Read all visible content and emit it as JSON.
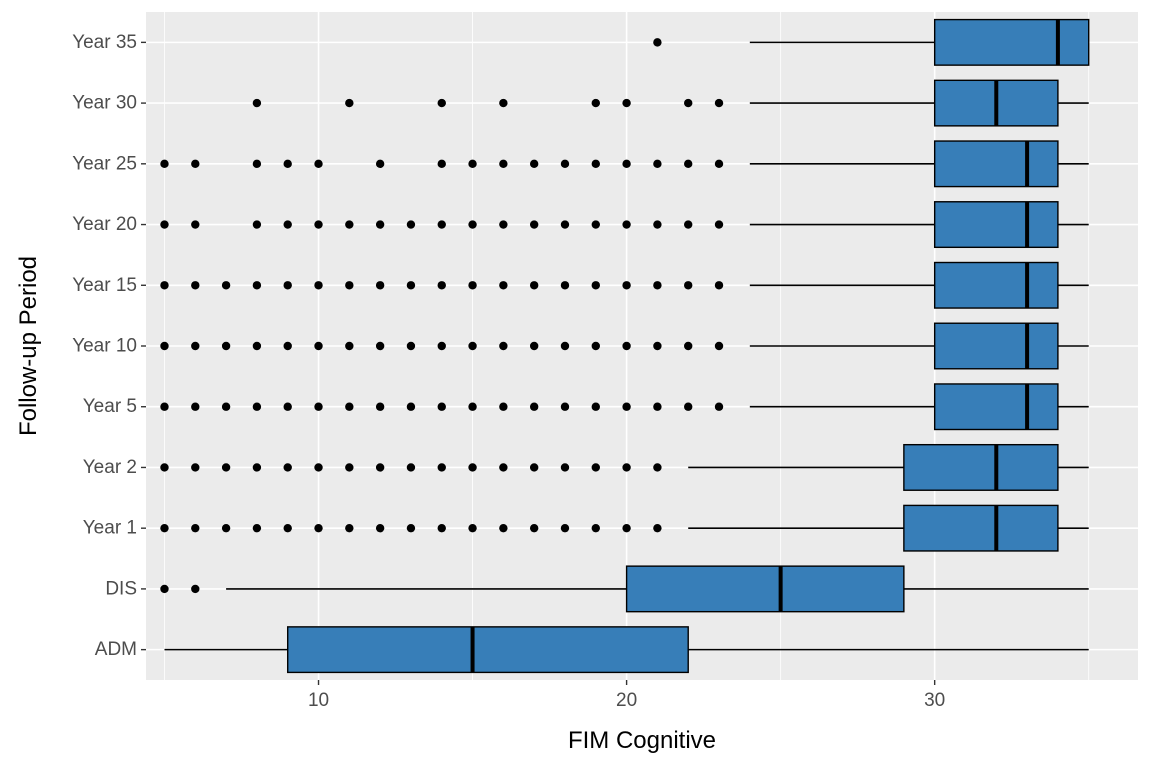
{
  "chart_data": {
    "type": "boxplot",
    "orientation": "horizontal",
    "xlabel": "FIM Cognitive",
    "ylabel": "Follow-up Period",
    "xlim": [
      4.4,
      36.6
    ],
    "x_ticks": [
      10,
      20,
      30
    ],
    "x_tick_labels": [
      "10",
      "20",
      "30"
    ],
    "grid": true,
    "legend": "none",
    "colors": {
      "panel": "#ebebeb",
      "grid": "#ffffff",
      "box_fill": "#377eb8",
      "box_stroke": "#000000",
      "whisker": "#000000",
      "outlier": "#000000",
      "tick_label": "#4d4d4d"
    },
    "categories": [
      "ADM",
      "DIS",
      "Year 1",
      "Year 2",
      "Year 5",
      "Year 10",
      "Year 15",
      "Year 20",
      "Year 25",
      "Year 30",
      "Year 35"
    ],
    "boxes": [
      {
        "category": "ADM",
        "whisker_low": 5,
        "q1": 9,
        "median": 15,
        "q3": 22,
        "whisker_high": 35,
        "outliers": []
      },
      {
        "category": "DIS",
        "whisker_low": 7,
        "q1": 20,
        "median": 25,
        "q3": 29,
        "whisker_high": 35,
        "outliers": [
          5,
          6
        ]
      },
      {
        "category": "Year 1",
        "whisker_low": 22,
        "q1": 29,
        "median": 32,
        "q3": 34,
        "whisker_high": 35,
        "outliers": [
          5,
          6,
          7,
          8,
          9,
          10,
          11,
          12,
          13,
          14,
          15,
          16,
          17,
          18,
          19,
          20,
          21
        ]
      },
      {
        "category": "Year 2",
        "whisker_low": 22,
        "q1": 29,
        "median": 32,
        "q3": 34,
        "whisker_high": 35,
        "outliers": [
          5,
          6,
          7,
          8,
          9,
          10,
          11,
          12,
          13,
          14,
          15,
          16,
          17,
          18,
          19,
          20,
          21
        ]
      },
      {
        "category": "Year 5",
        "whisker_low": 24,
        "q1": 30,
        "median": 33,
        "q3": 34,
        "whisker_high": 35,
        "outliers": [
          5,
          6,
          7,
          8,
          9,
          10,
          11,
          12,
          13,
          14,
          15,
          16,
          17,
          18,
          19,
          20,
          21,
          22,
          23
        ]
      },
      {
        "category": "Year 10",
        "whisker_low": 24,
        "q1": 30,
        "median": 33,
        "q3": 34,
        "whisker_high": 35,
        "outliers": [
          5,
          6,
          7,
          8,
          9,
          10,
          11,
          12,
          13,
          14,
          15,
          16,
          17,
          18,
          19,
          20,
          21,
          22,
          23
        ]
      },
      {
        "category": "Year 15",
        "whisker_low": 24,
        "q1": 30,
        "median": 33,
        "q3": 34,
        "whisker_high": 35,
        "outliers": [
          5,
          6,
          7,
          8,
          9,
          10,
          11,
          12,
          13,
          14,
          15,
          16,
          17,
          18,
          19,
          20,
          21,
          22,
          23
        ]
      },
      {
        "category": "Year 20",
        "whisker_low": 24,
        "q1": 30,
        "median": 33,
        "q3": 34,
        "whisker_high": 35,
        "outliers": [
          5,
          6,
          8,
          9,
          10,
          11,
          12,
          13,
          14,
          15,
          16,
          17,
          18,
          19,
          20,
          21,
          22,
          23
        ]
      },
      {
        "category": "Year 25",
        "whisker_low": 24,
        "q1": 30,
        "median": 33,
        "q3": 34,
        "whisker_high": 35,
        "outliers": [
          5,
          6,
          8,
          9,
          10,
          12,
          14,
          15,
          16,
          17,
          18,
          19,
          20,
          21,
          22,
          23
        ]
      },
      {
        "category": "Year 30",
        "whisker_low": 24,
        "q1": 30,
        "median": 32,
        "q3": 34,
        "whisker_high": 35,
        "outliers": [
          8,
          11,
          14,
          16,
          19,
          20,
          22,
          23
        ]
      },
      {
        "category": "Year 35",
        "whisker_low": 24,
        "q1": 30,
        "median": 34,
        "q3": 35,
        "whisker_high": 35,
        "outliers": [
          21
        ]
      }
    ]
  }
}
